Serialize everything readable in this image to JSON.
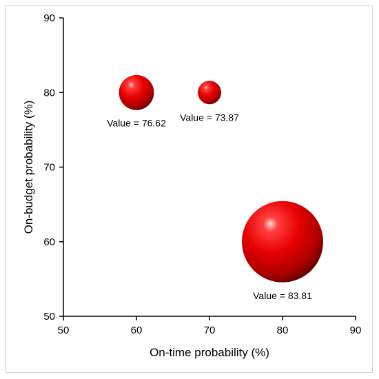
{
  "chart_data": {
    "type": "bubble",
    "title": "",
    "xlabel": "On-time probability (%)",
    "ylabel": "On-budget probability (%)",
    "xlim": [
      50,
      90
    ],
    "ylim": [
      50,
      90
    ],
    "xticks": [
      50,
      60,
      70,
      80,
      90
    ],
    "yticks": [
      50,
      60,
      70,
      80,
      90
    ],
    "grid": false,
    "legend": "none",
    "color": "#e00000",
    "points": [
      {
        "x": 60,
        "y": 80,
        "value": 76.62,
        "label": "Value = 76.62"
      },
      {
        "x": 70,
        "y": 80,
        "value": 73.87,
        "label": "Value = 73.87"
      },
      {
        "x": 80,
        "y": 60,
        "value": 83.81,
        "label": "Value = 83.81"
      }
    ]
  }
}
